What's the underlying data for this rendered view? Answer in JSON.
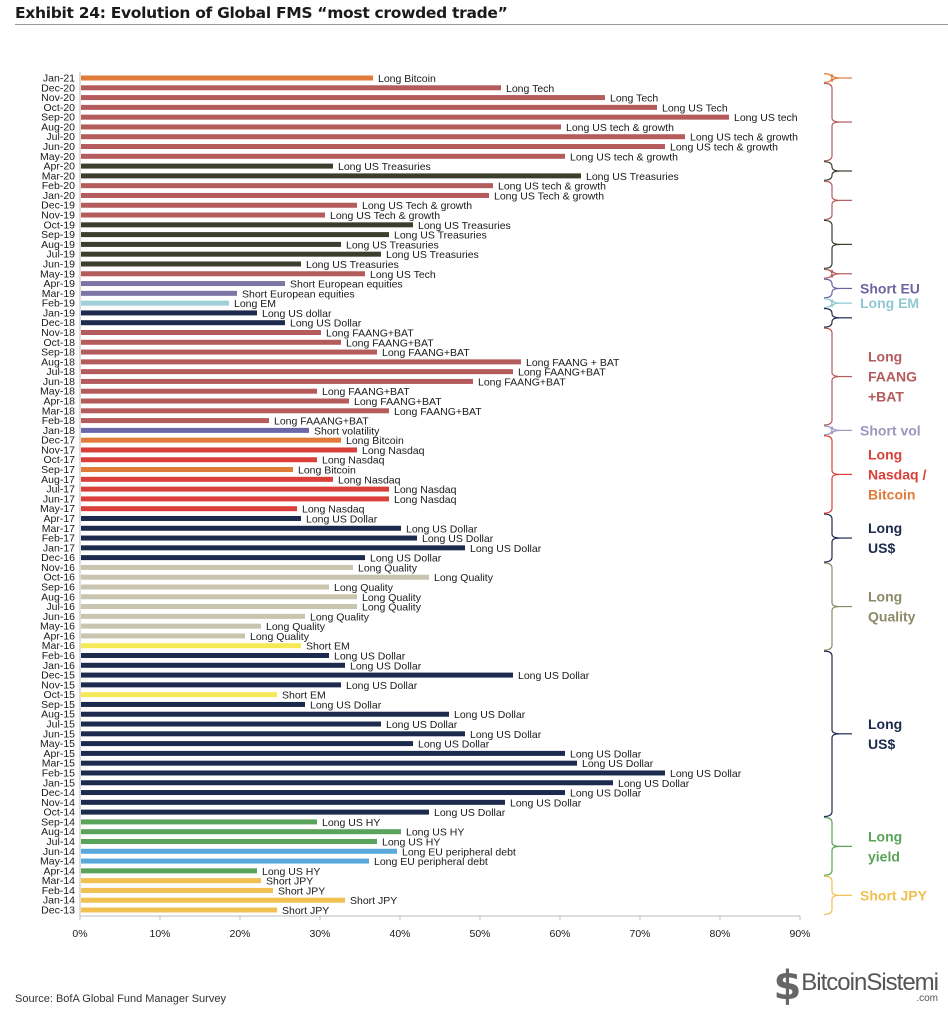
{
  "page": {
    "title": "Exhibit 24: Evolution of Global FMS “most crowded trade”",
    "source": "Source: BofA Global Fund Manager Survey",
    "watermark": {
      "logo_glyph": "$",
      "name": "BitcoinSistemi",
      "domain": ".com"
    }
  },
  "chart_data": {
    "type": "bar",
    "orientation": "horizontal",
    "title": "Evolution of Global FMS “most crowded trade”",
    "xlabel": "",
    "ylabel": "",
    "xlim": [
      0,
      90
    ],
    "x_ticks": [
      "0%",
      "10%",
      "20%",
      "30%",
      "40%",
      "50%",
      "60%",
      "70%",
      "80%",
      "90%"
    ],
    "grid": false,
    "legend": "none",
    "colors": {
      "bitcoin": "#e07b39",
      "tech": "#b45b5b",
      "treasuries": "#3d3d2e",
      "short_eu": "#7d75a6",
      "long_em": "#9fd0d8",
      "usd": "#1c2a4e",
      "faang": "#b45b5b",
      "short_vol": "#6a68a8",
      "nasdaq": "#d9403a",
      "quality": "#c8c4ad",
      "short_em": "#f5ea55",
      "hy": "#5aa35a",
      "eu_debt": "#5aa9dd",
      "jpy": "#f0c050"
    },
    "bars": [
      {
        "date": "Jan-21",
        "label": "Long Bitcoin",
        "value": 36.5,
        "color": "bitcoin"
      },
      {
        "date": "Dec-20",
        "label": "Long Tech",
        "value": 52.5,
        "color": "tech"
      },
      {
        "date": "Nov-20",
        "label": "Long Tech",
        "value": 65.5,
        "color": "tech"
      },
      {
        "date": "Oct-20",
        "label": "Long US Tech",
        "value": 72,
        "color": "tech"
      },
      {
        "date": "Sep-20",
        "label": "Long US tech",
        "value": 81,
        "color": "tech"
      },
      {
        "date": "Aug-20",
        "label": "Long US tech & growth",
        "value": 60,
        "color": "tech"
      },
      {
        "date": "Jul-20",
        "label": "Long US tech & growth",
        "value": 75.5,
        "color": "tech"
      },
      {
        "date": "Jun-20",
        "label": "Long US tech & growth",
        "value": 73,
        "color": "tech"
      },
      {
        "date": "May-20",
        "label": "Long US tech & growth",
        "value": 60.5,
        "color": "tech"
      },
      {
        "date": "Apr-20",
        "label": "Long US Treasuries",
        "value": 31.5,
        "color": "treasuries"
      },
      {
        "date": "Mar-20",
        "label": "Long US Treasuries",
        "value": 62.5,
        "color": "treasuries"
      },
      {
        "date": "Feb-20",
        "label": "Long US tech & growth",
        "value": 51.5,
        "color": "tech"
      },
      {
        "date": "Jan-20",
        "label": "Long US Tech & growth",
        "value": 51,
        "color": "tech"
      },
      {
        "date": "Dec-19",
        "label": "Long US Tech & growth",
        "value": 34.5,
        "color": "tech"
      },
      {
        "date": "Nov-19",
        "label": "Long US Tech & growth",
        "value": 30.5,
        "color": "tech"
      },
      {
        "date": "Oct-19",
        "label": "Long US Treasuries",
        "value": 41.5,
        "color": "treasuries"
      },
      {
        "date": "Sep-19",
        "label": "Long US Treasuries",
        "value": 38.5,
        "color": "treasuries"
      },
      {
        "date": "Aug-19",
        "label": "Long US Treasuries",
        "value": 32.5,
        "color": "treasuries"
      },
      {
        "date": "Jul-19",
        "label": "Long US Treasuries",
        "value": 37.5,
        "color": "treasuries"
      },
      {
        "date": "Jun-19",
        "label": "Long US Treasuries",
        "value": 27.5,
        "color": "treasuries"
      },
      {
        "date": "May-19",
        "label": "Long US Tech",
        "value": 35.5,
        "color": "tech"
      },
      {
        "date": "Apr-19",
        "label": "Short European equities",
        "value": 25.5,
        "color": "short_eu"
      },
      {
        "date": "Mar-19",
        "label": "Short European equities",
        "value": 19.5,
        "color": "short_eu"
      },
      {
        "date": "Feb-19",
        "label": "Long EM",
        "value": 18.5,
        "color": "long_em"
      },
      {
        "date": "Jan-19",
        "label": "Long US dollar",
        "value": 22,
        "color": "usd"
      },
      {
        "date": "Dec-18",
        "label": "Long US Dollar",
        "value": 25.5,
        "color": "usd"
      },
      {
        "date": "Nov-18",
        "label": "Long FAANG+BAT",
        "value": 30,
        "color": "faang"
      },
      {
        "date": "Oct-18",
        "label": "Long FAANG+BAT",
        "value": 32.5,
        "color": "faang"
      },
      {
        "date": "Sep-18",
        "label": "Long FAANG+BAT",
        "value": 37,
        "color": "faang"
      },
      {
        "date": "Aug-18",
        "label": "Long FAANG + BAT",
        "value": 55,
        "color": "faang"
      },
      {
        "date": "Jul-18",
        "label": "Long FAANG+BAT",
        "value": 54,
        "color": "faang"
      },
      {
        "date": "Jun-18",
        "label": "Long FAANG+BAT",
        "value": 49,
        "color": "faang"
      },
      {
        "date": "May-18",
        "label": "Long FAANG+BAT",
        "value": 29.5,
        "color": "faang"
      },
      {
        "date": "Apr-18",
        "label": "Long FAANG+BAT",
        "value": 33.5,
        "color": "faang"
      },
      {
        "date": "Mar-18",
        "label": "Long FAANG+BAT",
        "value": 38.5,
        "color": "faang"
      },
      {
        "date": "Feb-18",
        "label": "Long FAAANG+BAT",
        "value": 23.5,
        "color": "faang"
      },
      {
        "date": "Jan-18",
        "label": "Short volatility",
        "value": 28.5,
        "color": "short_vol"
      },
      {
        "date": "Dec-17",
        "label": "Long Bitcoin",
        "value": 32.5,
        "color": "bitcoin"
      },
      {
        "date": "Nov-17",
        "label": "Long Nasdaq",
        "value": 34.5,
        "color": "nasdaq"
      },
      {
        "date": "Oct-17",
        "label": "Long Nasdaq",
        "value": 29.5,
        "color": "nasdaq"
      },
      {
        "date": "Sep-17",
        "label": "Long Bitcoin",
        "value": 26.5,
        "color": "bitcoin"
      },
      {
        "date": "Aug-17",
        "label": "Long Nasdaq",
        "value": 31.5,
        "color": "nasdaq"
      },
      {
        "date": "Jul-17",
        "label": "Long Nasdaq",
        "value": 38.5,
        "color": "nasdaq"
      },
      {
        "date": "Jun-17",
        "label": "Long Nasdaq",
        "value": 38.5,
        "color": "nasdaq"
      },
      {
        "date": "May-17",
        "label": "Long Nasdaq",
        "value": 27,
        "color": "nasdaq"
      },
      {
        "date": "Apr-17",
        "label": "Long US Dollar",
        "value": 27.5,
        "color": "usd"
      },
      {
        "date": "Mar-17",
        "label": "Long US Dollar",
        "value": 40,
        "color": "usd"
      },
      {
        "date": "Feb-17",
        "label": "Long US Dollar",
        "value": 42,
        "color": "usd"
      },
      {
        "date": "Jan-17",
        "label": "Long US Dollar",
        "value": 48,
        "color": "usd"
      },
      {
        "date": "Dec-16",
        "label": "Long US Dollar",
        "value": 35.5,
        "color": "usd"
      },
      {
        "date": "Nov-16",
        "label": "Long Quality",
        "value": 34,
        "color": "quality"
      },
      {
        "date": "Oct-16",
        "label": "Long Quality",
        "value": 43.5,
        "color": "quality"
      },
      {
        "date": "Sep-16",
        "label": "Long Quality",
        "value": 31,
        "color": "quality"
      },
      {
        "date": "Aug-16",
        "label": "Long Quality",
        "value": 34.5,
        "color": "quality"
      },
      {
        "date": "Jul-16",
        "label": "Long Quality",
        "value": 34.5,
        "color": "quality"
      },
      {
        "date": "Jun-16",
        "label": "Long Quality",
        "value": 28,
        "color": "quality"
      },
      {
        "date": "May-16",
        "label": "Long Quality",
        "value": 22.5,
        "color": "quality"
      },
      {
        "date": "Apr-16",
        "label": "Long Quality",
        "value": 20.5,
        "color": "quality"
      },
      {
        "date": "Mar-16",
        "label": "Short EM",
        "value": 27.5,
        "color": "short_em"
      },
      {
        "date": "Feb-16",
        "label": "Long US Dollar",
        "value": 31,
        "color": "usd"
      },
      {
        "date": "Jan-16",
        "label": "Long US Dollar",
        "value": 33,
        "color": "usd"
      },
      {
        "date": "Dec-15",
        "label": "Long US Dollar",
        "value": 54,
        "color": "usd"
      },
      {
        "date": "Nov-15",
        "label": "Long US Dollar",
        "value": 32.5,
        "color": "usd"
      },
      {
        "date": "Oct-15",
        "label": "Short EM",
        "value": 24.5,
        "color": "short_em"
      },
      {
        "date": "Sep-15",
        "label": "Long US Dollar",
        "value": 28,
        "color": "usd"
      },
      {
        "date": "Aug-15",
        "label": "Long US Dollar",
        "value": 46,
        "color": "usd"
      },
      {
        "date": "Jul-15",
        "label": "Long US Dollar",
        "value": 37.5,
        "color": "usd"
      },
      {
        "date": "Jun-15",
        "label": "Long US Dollar",
        "value": 48,
        "color": "usd"
      },
      {
        "date": "May-15",
        "label": "Long US Dollar",
        "value": 41.5,
        "color": "usd"
      },
      {
        "date": "Apr-15",
        "label": "Long US Dollar",
        "value": 60.5,
        "color": "usd"
      },
      {
        "date": "Mar-15",
        "label": "Long US Dollar",
        "value": 62,
        "color": "usd"
      },
      {
        "date": "Feb-15",
        "label": "Long US Dollar",
        "value": 73,
        "color": "usd"
      },
      {
        "date": "Jan-15",
        "label": "Long US Dollar",
        "value": 66.5,
        "color": "usd"
      },
      {
        "date": "Dec-14",
        "label": "Long US Dollar",
        "value": 60.5,
        "color": "usd"
      },
      {
        "date": "Nov-14",
        "label": "Long US Dollar",
        "value": 53,
        "color": "usd"
      },
      {
        "date": "Oct-14",
        "label": "Long US Dollar",
        "value": 43.5,
        "color": "usd"
      },
      {
        "date": "Sep-14",
        "label": "Long US HY",
        "value": 29.5,
        "color": "hy"
      },
      {
        "date": "Aug-14",
        "label": "Long US HY",
        "value": 40,
        "color": "hy"
      },
      {
        "date": "Jul-14",
        "label": "Long US HY",
        "value": 37,
        "color": "hy"
      },
      {
        "date": "Jun-14",
        "label": "Long EU peripheral debt",
        "value": 39.5,
        "color": "eu_debt"
      },
      {
        "date": "May-14",
        "label": "Long EU peripheral debt",
        "value": 36,
        "color": "eu_debt"
      },
      {
        "date": "Apr-14",
        "label": "Long US HY",
        "value": 22,
        "color": "hy"
      },
      {
        "date": "Mar-14",
        "label": "Short JPY",
        "value": 22.5,
        "color": "jpy"
      },
      {
        "date": "Feb-14",
        "label": "Short JPY",
        "value": 24,
        "color": "jpy"
      },
      {
        "date": "Jan-14",
        "label": "Short JPY",
        "value": 33,
        "color": "jpy"
      },
      {
        "date": "Dec-13",
        "label": "Short JPY",
        "value": 24.5,
        "color": "jpy"
      }
    ],
    "annotations": [
      {
        "from": "Jan-21",
        "to": "Jan-21",
        "text": "",
        "color": "#e07b39"
      },
      {
        "from": "Dec-20",
        "to": "May-20",
        "text": "",
        "color": "#b45b5b"
      },
      {
        "from": "Apr-20",
        "to": "Mar-20",
        "text": "",
        "color": "#3d3d2e"
      },
      {
        "from": "Feb-20",
        "to": "Nov-19",
        "text": "",
        "color": "#b45b5b"
      },
      {
        "from": "Oct-19",
        "to": "Jun-19",
        "text": "",
        "color": "#3d3d2e"
      },
      {
        "from": "May-19",
        "to": "May-19",
        "text": "",
        "color": "#b45b5b"
      },
      {
        "from": "Apr-19",
        "to": "Mar-19",
        "text": "Short EU",
        "color": "#6e64a0"
      },
      {
        "from": "Feb-19",
        "to": "Feb-19",
        "text": "Long EM",
        "color": "#8fc8d2"
      },
      {
        "from": "Jan-19",
        "to": "Dec-18",
        "text": "",
        "color": "#1c2a4e"
      },
      {
        "from": "Nov-18",
        "to": "Feb-18",
        "text": "Long FAANG +BAT",
        "color": "#b45b5b"
      },
      {
        "from": "Jan-18",
        "to": "Jan-18",
        "text": "Short vol",
        "color": "#9a98c0"
      },
      {
        "from": "Dec-17",
        "to": "May-17",
        "text_lines": [
          "Long",
          "Nasdaq /",
          "Bitcoin"
        ],
        "text": "Long Nasdaq / Bitcoin",
        "color": "#d9403a"
      },
      {
        "from": "Apr-17",
        "to": "Dec-16",
        "text": "Long US$",
        "color": "#1c2a4e"
      },
      {
        "from": "Nov-16",
        "to": "Mar-16",
        "text": "Long Quality",
        "color": "#8c8a66"
      },
      {
        "from": "Feb-16",
        "to": "Oct-14",
        "text": "Long US$",
        "color": "#1c2a4e"
      },
      {
        "from": "Sep-14",
        "to": "Apr-14",
        "text": "Long yield",
        "color": "#5aa35a"
      },
      {
        "from": "Mar-14",
        "to": "Dec-13",
        "text": "Short JPY",
        "color": "#f0c050"
      }
    ]
  }
}
